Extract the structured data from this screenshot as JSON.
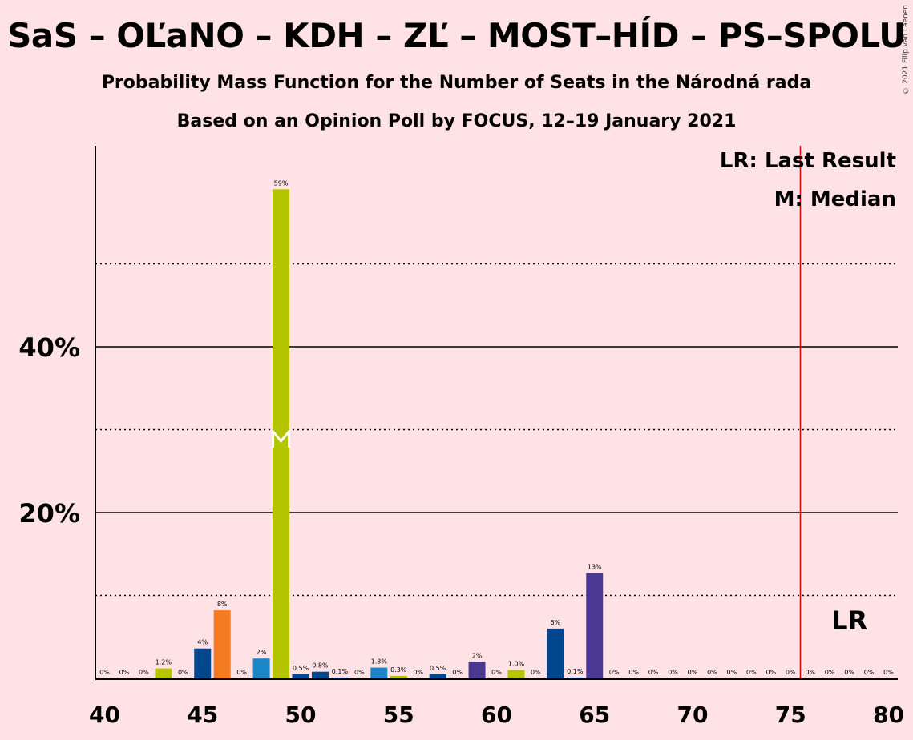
{
  "title": "SaS – OĽaNO – KDH – ZĽ – MOST–HÍD – PS–SPOLU",
  "subtitle1": "Probability Mass Function for the Number of Seats in the Národná rada",
  "subtitle2": "Based on an Opinion Poll by FOCUS, 12–19 January 2021",
  "copyright": "© 2021 Filip van Laenen",
  "legend": {
    "lr": "LR: Last Result",
    "m": "M: Median"
  },
  "lr_marker": "LR",
  "median_marker": "M",
  "colors": {
    "background": "#FFE2E5",
    "lime": "#B5C400",
    "blue": "#00478F",
    "orange": "#F47B20",
    "lightblue": "#1B87C9",
    "purple": "#4B3893",
    "lastresult_line": "#E00000"
  },
  "chart_data": {
    "type": "bar",
    "xlim": [
      40,
      80
    ],
    "ylim": [
      0,
      64
    ],
    "yticks_major": [
      20,
      40
    ],
    "ytick_labels": [
      "20%",
      "40%"
    ],
    "ygrid_minor": [
      10,
      30,
      50
    ],
    "xticks": [
      40,
      45,
      50,
      55,
      60,
      65,
      70,
      75,
      80
    ],
    "last_result": 75.5,
    "median": 49,
    "median_y": 29,
    "bars": [
      {
        "x": 40,
        "value": 0,
        "label": "0%",
        "color": "lime"
      },
      {
        "x": 41,
        "value": 0,
        "label": "0%",
        "color": "lime"
      },
      {
        "x": 42,
        "value": 0,
        "label": "0%",
        "color": "lime"
      },
      {
        "x": 43,
        "value": 1.2,
        "label": "1.2%",
        "color": "lime"
      },
      {
        "x": 44,
        "value": 0,
        "label": "0%",
        "color": "lime"
      },
      {
        "x": 45,
        "value": 3.6,
        "label": "4%",
        "color": "blue"
      },
      {
        "x": 46,
        "value": 8.2,
        "label": "8%",
        "color": "orange"
      },
      {
        "x": 47,
        "value": 0,
        "label": "0%",
        "color": "lime"
      },
      {
        "x": 48,
        "value": 2.4,
        "label": "2%",
        "color": "lightblue"
      },
      {
        "x": 49,
        "value": 59,
        "label": "59%",
        "color": "lime"
      },
      {
        "x": 50,
        "value": 0.5,
        "label": "0.5%",
        "color": "blue"
      },
      {
        "x": 51,
        "value": 0.8,
        "label": "0.8%",
        "color": "blue"
      },
      {
        "x": 52,
        "value": 0.1,
        "label": "0.1%",
        "color": "blue"
      },
      {
        "x": 53,
        "value": 0,
        "label": "0%",
        "color": "lime"
      },
      {
        "x": 54,
        "value": 1.3,
        "label": "1.3%",
        "color": "lightblue"
      },
      {
        "x": 55,
        "value": 0.3,
        "label": "0.3%",
        "color": "lime"
      },
      {
        "x": 56,
        "value": 0,
        "label": "0%",
        "color": "lime"
      },
      {
        "x": 57,
        "value": 0.5,
        "label": "0.5%",
        "color": "blue"
      },
      {
        "x": 58,
        "value": 0,
        "label": "0%",
        "color": "lime"
      },
      {
        "x": 59,
        "value": 2.0,
        "label": "2%",
        "color": "purple"
      },
      {
        "x": 60,
        "value": 0,
        "label": "0%",
        "color": "lime"
      },
      {
        "x": 61,
        "value": 1.0,
        "label": "1.0%",
        "color": "lime"
      },
      {
        "x": 62,
        "value": 0,
        "label": "0%",
        "color": "lime"
      },
      {
        "x": 63,
        "value": 6.0,
        "label": "6%",
        "color": "blue"
      },
      {
        "x": 64,
        "value": 0.1,
        "label": "0.1%",
        "color": "blue"
      },
      {
        "x": 65,
        "value": 12.7,
        "label": "13%",
        "color": "purple"
      },
      {
        "x": 66,
        "value": 0,
        "label": "0%",
        "color": "lime"
      },
      {
        "x": 67,
        "value": 0,
        "label": "0%",
        "color": "lime"
      },
      {
        "x": 68,
        "value": 0,
        "label": "0%",
        "color": "lime"
      },
      {
        "x": 69,
        "value": 0,
        "label": "0%",
        "color": "lime"
      },
      {
        "x": 70,
        "value": 0,
        "label": "0%",
        "color": "lime"
      },
      {
        "x": 71,
        "value": 0,
        "label": "0%",
        "color": "lime"
      },
      {
        "x": 72,
        "value": 0,
        "label": "0%",
        "color": "lime"
      },
      {
        "x": 73,
        "value": 0,
        "label": "0%",
        "color": "lime"
      },
      {
        "x": 74,
        "value": 0,
        "label": "0%",
        "color": "lime"
      },
      {
        "x": 75,
        "value": 0,
        "label": "0%",
        "color": "lime"
      },
      {
        "x": 76,
        "value": 0,
        "label": "0%",
        "color": "lime"
      },
      {
        "x": 77,
        "value": 0,
        "label": "0%",
        "color": "lime"
      },
      {
        "x": 78,
        "value": 0,
        "label": "0%",
        "color": "lime"
      },
      {
        "x": 79,
        "value": 0,
        "label": "0%",
        "color": "lime"
      },
      {
        "x": 80,
        "value": 0,
        "label": "0%",
        "color": "lime"
      }
    ]
  }
}
